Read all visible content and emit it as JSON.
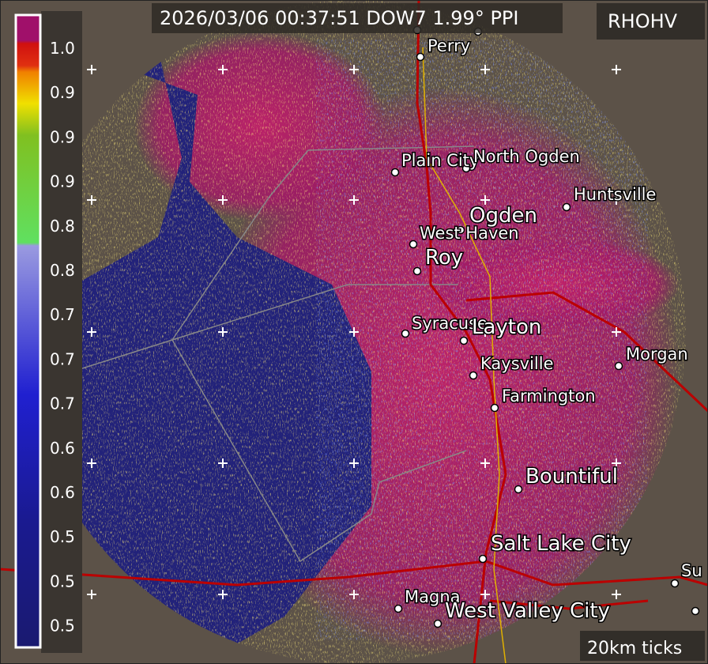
{
  "header": {
    "title": "2026/03/06 00:37:51 DOW7 1.99° PPI",
    "product": "RHOHV",
    "scale_note": "20km ticks"
  },
  "colorbar": {
    "labels": [
      "1.0",
      "0.9",
      "0.9",
      "0.9",
      "0.8",
      "0.8",
      "0.7",
      "0.7",
      "0.7",
      "0.6",
      "0.6",
      "0.5",
      "0.5",
      "0.5"
    ]
  },
  "cities": [
    {
      "name": "Perry"
    },
    {
      "name": "Plain City"
    },
    {
      "name": "North Ogden"
    },
    {
      "name": "Huntsville"
    },
    {
      "name": "Ogden"
    },
    {
      "name": "West Haven"
    },
    {
      "name": "Roy"
    },
    {
      "name": "Syracuse"
    },
    {
      "name": "Layton"
    },
    {
      "name": "Morgan"
    },
    {
      "name": "Kaysville"
    },
    {
      "name": "Farmington"
    },
    {
      "name": "Bountiful"
    },
    {
      "name": "Salt Lake City"
    },
    {
      "name": "Magna"
    },
    {
      "name": "West Valley City"
    },
    {
      "name": "Su"
    }
  ]
}
